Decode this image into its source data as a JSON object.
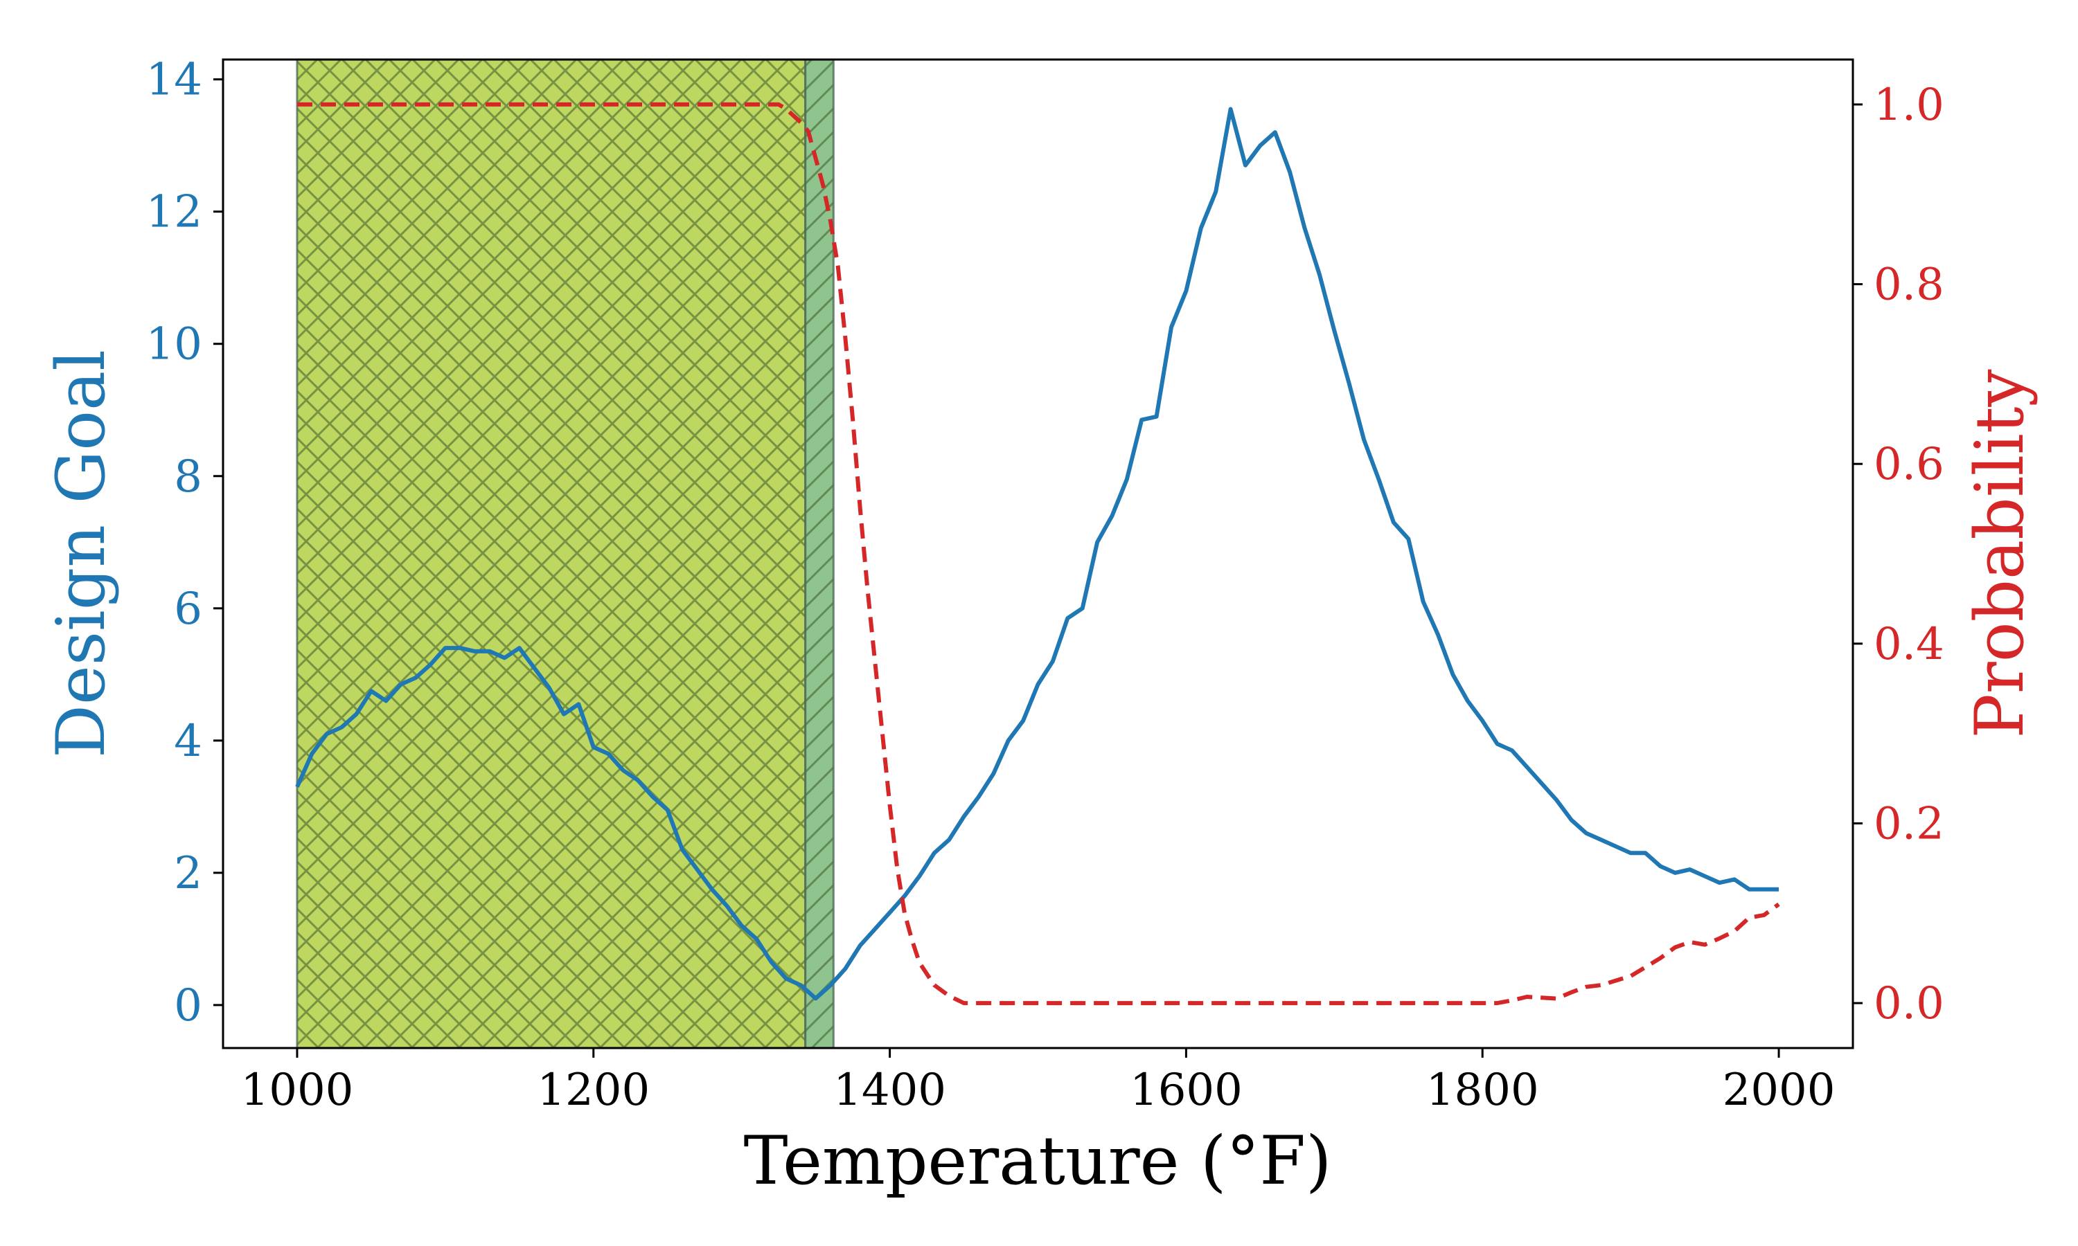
{
  "chart_data": {
    "type": "line",
    "xlabel": "Temperature (°F)",
    "x_range": [
      950,
      2050
    ],
    "x_ticks": [
      1000,
      1200,
      1400,
      1600,
      1800,
      2000
    ],
    "y_left": {
      "label": "Design Goal",
      "range": [
        -0.65,
        14.3
      ],
      "ticks": [
        0,
        2,
        4,
        6,
        8,
        10,
        12,
        14
      ],
      "color": "#1f77b4"
    },
    "y_right": {
      "label": "Probability",
      "range": [
        -0.05,
        1.05
      ],
      "ticks": [
        0.0,
        0.2,
        0.4,
        0.6,
        0.8,
        1.0
      ],
      "tick_labels": [
        "0.0",
        "0.2",
        "0.4",
        "0.6",
        "0.8",
        "1.0"
      ],
      "color": "#d62728"
    },
    "regions": [
      {
        "name": "crosshatched region",
        "x_start": 1000,
        "x_end": 1343,
        "fill": "#a8c92b",
        "hatch": "cross"
      },
      {
        "name": "hatched region",
        "x_start": 1343,
        "x_end": 1362,
        "fill": "#6ab06a",
        "hatch": "diagonal"
      }
    ],
    "series": [
      {
        "name": "Design Goal",
        "axis": "left",
        "color": "#1f77b4",
        "style": "solid",
        "points": [
          [
            1000,
            3.3
          ],
          [
            1010,
            3.8
          ],
          [
            1020,
            4.1
          ],
          [
            1030,
            4.2
          ],
          [
            1040,
            4.4
          ],
          [
            1050,
            4.75
          ],
          [
            1060,
            4.6
          ],
          [
            1070,
            4.85
          ],
          [
            1080,
            4.95
          ],
          [
            1090,
            5.15
          ],
          [
            1100,
            5.4
          ],
          [
            1110,
            5.4
          ],
          [
            1120,
            5.35
          ],
          [
            1130,
            5.35
          ],
          [
            1140,
            5.25
          ],
          [
            1150,
            5.4
          ],
          [
            1160,
            5.1
          ],
          [
            1170,
            4.8
          ],
          [
            1180,
            4.4
          ],
          [
            1190,
            4.55
          ],
          [
            1200,
            3.9
          ],
          [
            1210,
            3.8
          ],
          [
            1220,
            3.55
          ],
          [
            1230,
            3.4
          ],
          [
            1240,
            3.15
          ],
          [
            1250,
            2.95
          ],
          [
            1260,
            2.35
          ],
          [
            1270,
            2.05
          ],
          [
            1280,
            1.75
          ],
          [
            1290,
            1.5
          ],
          [
            1300,
            1.2
          ],
          [
            1310,
            1.0
          ],
          [
            1320,
            0.65
          ],
          [
            1330,
            0.4
          ],
          [
            1340,
            0.3
          ],
          [
            1350,
            0.1
          ],
          [
            1360,
            0.3
          ],
          [
            1370,
            0.55
          ],
          [
            1380,
            0.9
          ],
          [
            1390,
            1.15
          ],
          [
            1400,
            1.4
          ],
          [
            1410,
            1.65
          ],
          [
            1420,
            1.95
          ],
          [
            1430,
            2.3
          ],
          [
            1440,
            2.5
          ],
          [
            1450,
            2.85
          ],
          [
            1460,
            3.15
          ],
          [
            1470,
            3.5
          ],
          [
            1480,
            4.0
          ],
          [
            1490,
            4.3
          ],
          [
            1500,
            4.85
          ],
          [
            1510,
            5.2
          ],
          [
            1520,
            5.85
          ],
          [
            1530,
            6.0
          ],
          [
            1540,
            7.0
          ],
          [
            1550,
            7.4
          ],
          [
            1560,
            7.95
          ],
          [
            1570,
            8.85
          ],
          [
            1580,
            8.9
          ],
          [
            1590,
            10.25
          ],
          [
            1600,
            10.8
          ],
          [
            1610,
            11.75
          ],
          [
            1620,
            12.3
          ],
          [
            1630,
            13.55
          ],
          [
            1640,
            12.7
          ],
          [
            1650,
            13.0
          ],
          [
            1660,
            13.2
          ],
          [
            1670,
            12.6
          ],
          [
            1680,
            11.75
          ],
          [
            1690,
            11.05
          ],
          [
            1700,
            10.2
          ],
          [
            1710,
            9.4
          ],
          [
            1720,
            8.55
          ],
          [
            1730,
            7.95
          ],
          [
            1740,
            7.3
          ],
          [
            1750,
            7.05
          ],
          [
            1760,
            6.1
          ],
          [
            1770,
            5.6
          ],
          [
            1780,
            5.0
          ],
          [
            1790,
            4.6
          ],
          [
            1800,
            4.3
          ],
          [
            1810,
            3.95
          ],
          [
            1820,
            3.85
          ],
          [
            1830,
            3.6
          ],
          [
            1840,
            3.35
          ],
          [
            1850,
            3.1
          ],
          [
            1860,
            2.8
          ],
          [
            1870,
            2.6
          ],
          [
            1880,
            2.5
          ],
          [
            1890,
            2.4
          ],
          [
            1900,
            2.3
          ],
          [
            1910,
            2.3
          ],
          [
            1920,
            2.1
          ],
          [
            1930,
            2.0
          ],
          [
            1940,
            2.05
          ],
          [
            1950,
            1.95
          ],
          [
            1960,
            1.85
          ],
          [
            1970,
            1.9
          ],
          [
            1980,
            1.75
          ],
          [
            1990,
            1.75
          ],
          [
            2000,
            1.75
          ]
        ]
      },
      {
        "name": "Probability",
        "axis": "right",
        "color": "#d62728",
        "style": "dashed",
        "points": [
          [
            1000,
            1.0
          ],
          [
            1100,
            1.0
          ],
          [
            1200,
            1.0
          ],
          [
            1300,
            1.0
          ],
          [
            1325,
            1.0
          ],
          [
            1330,
            0.995
          ],
          [
            1340,
            0.98
          ],
          [
            1345,
            0.97
          ],
          [
            1350,
            0.94
          ],
          [
            1355,
            0.91
          ],
          [
            1360,
            0.87
          ],
          [
            1365,
            0.82
          ],
          [
            1370,
            0.74
          ],
          [
            1375,
            0.65
          ],
          [
            1380,
            0.55
          ],
          [
            1385,
            0.46
          ],
          [
            1390,
            0.38
          ],
          [
            1395,
            0.3
          ],
          [
            1400,
            0.22
          ],
          [
            1405,
            0.15
          ],
          [
            1410,
            0.1
          ],
          [
            1415,
            0.07
          ],
          [
            1420,
            0.045
          ],
          [
            1430,
            0.02
          ],
          [
            1440,
            0.008
          ],
          [
            1450,
            0.0
          ],
          [
            1500,
            0.0
          ],
          [
            1600,
            0.0
          ],
          [
            1700,
            0.0
          ],
          [
            1800,
            0.0
          ],
          [
            1810,
            0.0
          ],
          [
            1820,
            0.003
          ],
          [
            1830,
            0.007
          ],
          [
            1840,
            0.006
          ],
          [
            1850,
            0.005
          ],
          [
            1860,
            0.012
          ],
          [
            1870,
            0.018
          ],
          [
            1880,
            0.02
          ],
          [
            1890,
            0.025
          ],
          [
            1900,
            0.03
          ],
          [
            1910,
            0.04
          ],
          [
            1920,
            0.05
          ],
          [
            1930,
            0.062
          ],
          [
            1940,
            0.068
          ],
          [
            1950,
            0.065
          ],
          [
            1960,
            0.072
          ],
          [
            1970,
            0.08
          ],
          [
            1980,
            0.095
          ],
          [
            1990,
            0.098
          ],
          [
            2000,
            0.11
          ]
        ]
      }
    ]
  }
}
